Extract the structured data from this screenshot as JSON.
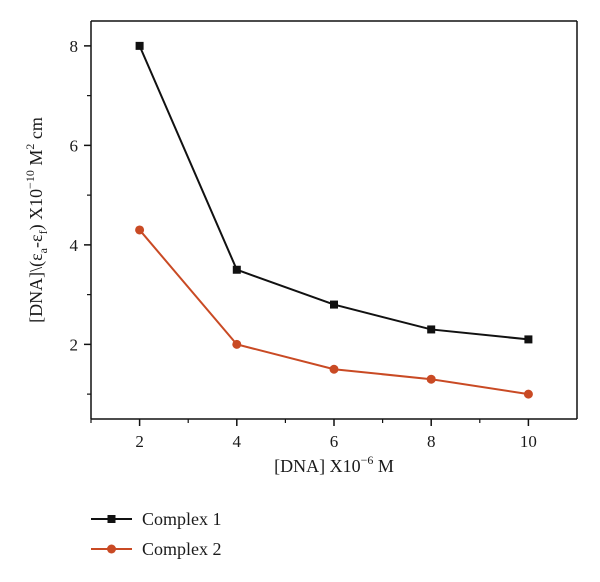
{
  "chart_data": {
    "type": "line",
    "xlabel": {
      "main": "[DNA] X10",
      "exp": "−6",
      "unit": " M"
    },
    "ylabel": {
      "main": "[DNA]\\(ε",
      "sub1": "a",
      "mid": "-ε",
      "sub2": "f",
      "rest": ") X10",
      "exp": "−10",
      "unit": " M",
      "exp2": "2",
      "tail": " cm"
    },
    "xlim": [
      1,
      11
    ],
    "ylim": [
      0.5,
      8.5
    ],
    "x_ticks": [
      2,
      4,
      6,
      8,
      10
    ],
    "y_ticks": [
      2,
      4,
      6,
      8
    ],
    "x": [
      2,
      4,
      6,
      8,
      10
    ],
    "series": [
      {
        "name": "Complex 1",
        "values": [
          8.0,
          3.5,
          2.8,
          2.3,
          2.1
        ],
        "color": "#111111",
        "marker": "square"
      },
      {
        "name": "Complex 2",
        "values": [
          4.3,
          2.0,
          1.5,
          1.3,
          1.0
        ],
        "color": "#c94a24",
        "marker": "circle"
      }
    ],
    "grid": false,
    "legend_position": "bottom-left, below plot"
  }
}
